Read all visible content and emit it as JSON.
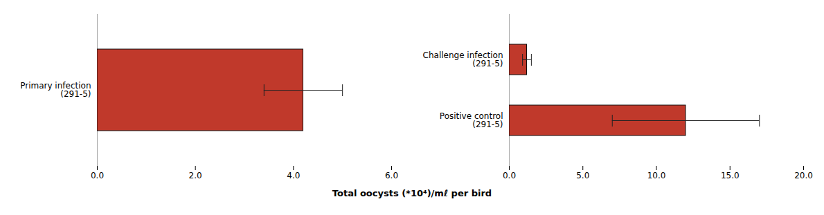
{
  "chart_data": [
    {
      "type": "bar",
      "orientation": "horizontal",
      "categories": [
        "Primary infection\n(291-5)"
      ],
      "values": [
        4.2
      ],
      "errors": [
        0.8
      ],
      "color": "#c0392b",
      "xlabel": "Total oocysts (*10⁴)/mℓ per bird",
      "xlim": [
        0,
        6.0
      ],
      "xticks": [
        {
          "value": 0,
          "label": "0.0"
        },
        {
          "value": 2,
          "label": "2.0"
        },
        {
          "value": 4,
          "label": "4.0"
        },
        {
          "value": 6,
          "label": "6.0"
        }
      ],
      "grid": false
    },
    {
      "type": "bar",
      "orientation": "horizontal",
      "categories": [
        "Challenge infection\n(291-5)",
        "Positive control\n(291-5)"
      ],
      "values": [
        1.2,
        12.0
      ],
      "errors": [
        0.3,
        5.0
      ],
      "color": "#c0392b",
      "xlabel": "Total oocysts (*10⁴)/mℓ per bird",
      "xlim": [
        0,
        20.0
      ],
      "xticks": [
        {
          "value": 0,
          "label": "0.0"
        },
        {
          "value": 5,
          "label": "5.0"
        },
        {
          "value": 10,
          "label": "10.0"
        },
        {
          "value": 15,
          "label": "15.0"
        },
        {
          "value": 20,
          "label": "20.0"
        }
      ],
      "grid": false
    }
  ]
}
